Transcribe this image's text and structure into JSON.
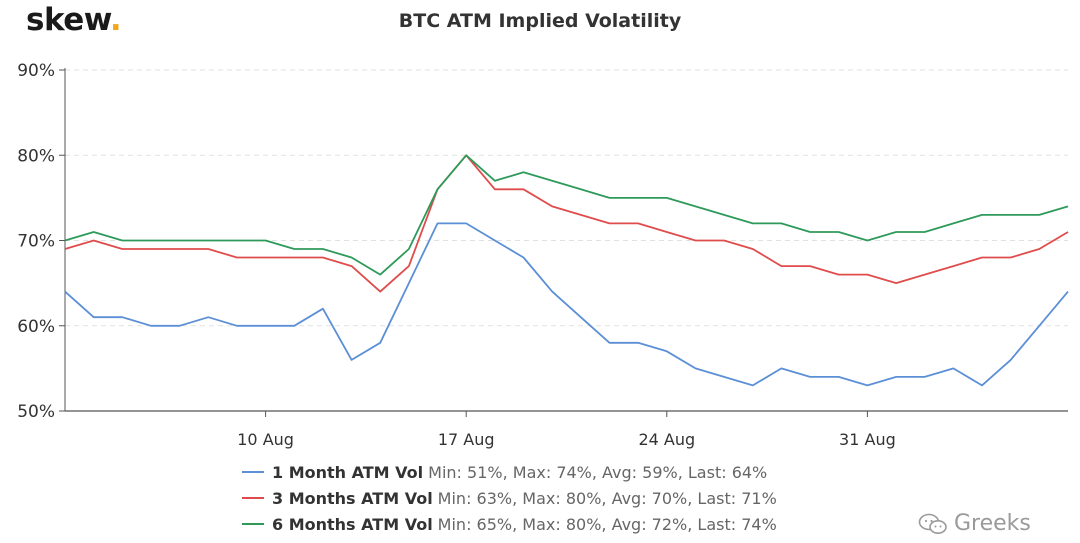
{
  "brand": {
    "name": "skew",
    "dot": "."
  },
  "watermark": {
    "text": "Greeks"
  },
  "chart_data": {
    "type": "line",
    "title": "BTC ATM Implied Volatility",
    "xlabel": "",
    "ylabel": "",
    "ylim": [
      50,
      90
    ],
    "y_ticks": [
      "50%",
      "60%",
      "70%",
      "80%",
      "90%"
    ],
    "y_tick_values": [
      50,
      60,
      70,
      80,
      90
    ],
    "xlim": [
      "2020-08-03",
      "2020-09-07"
    ],
    "x_ticks": [
      "10 Aug",
      "17 Aug",
      "24 Aug",
      "31 Aug"
    ],
    "x_tick_dates": [
      "2020-08-10",
      "2020-08-17",
      "2020-08-24",
      "2020-08-31"
    ],
    "grid": "horizontal dashed",
    "legend_placement": "bottom",
    "series": [
      {
        "name": "1 Month ATM Vol",
        "stats": "Min: 51%, Max: 74%, Avg: 59%, Last: 64%",
        "color": "#5b8fd6",
        "x": [
          "2020-08-03",
          "2020-08-04",
          "2020-08-05",
          "2020-08-06",
          "2020-08-07",
          "2020-08-08",
          "2020-08-09",
          "2020-08-10",
          "2020-08-11",
          "2020-08-12",
          "2020-08-13",
          "2020-08-14",
          "2020-08-15",
          "2020-08-16",
          "2020-08-17",
          "2020-08-18",
          "2020-08-19",
          "2020-08-20",
          "2020-08-21",
          "2020-08-22",
          "2020-08-23",
          "2020-08-24",
          "2020-08-25",
          "2020-08-26",
          "2020-08-27",
          "2020-08-28",
          "2020-08-29",
          "2020-08-30",
          "2020-08-31",
          "2020-09-01",
          "2020-09-02",
          "2020-09-03",
          "2020-09-04",
          "2020-09-05",
          "2020-09-06",
          "2020-09-07"
        ],
        "values": [
          64,
          61,
          61,
          60,
          60,
          61,
          60,
          60,
          60,
          62,
          56,
          58,
          65,
          72,
          72,
          70,
          68,
          64,
          61,
          58,
          58,
          57,
          55,
          54,
          53,
          55,
          54,
          54,
          53,
          54,
          54,
          55,
          53,
          56,
          60,
          64
        ]
      },
      {
        "name": "3 Months ATM Vol",
        "stats": "Min: 63%, Max: 80%, Avg: 70%, Last: 71%",
        "color": "#e04c4c",
        "x": [
          "2020-08-03",
          "2020-08-04",
          "2020-08-05",
          "2020-08-06",
          "2020-08-07",
          "2020-08-08",
          "2020-08-09",
          "2020-08-10",
          "2020-08-11",
          "2020-08-12",
          "2020-08-13",
          "2020-08-14",
          "2020-08-15",
          "2020-08-16",
          "2020-08-17",
          "2020-08-18",
          "2020-08-19",
          "2020-08-20",
          "2020-08-21",
          "2020-08-22",
          "2020-08-23",
          "2020-08-24",
          "2020-08-25",
          "2020-08-26",
          "2020-08-27",
          "2020-08-28",
          "2020-08-29",
          "2020-08-30",
          "2020-08-31",
          "2020-09-01",
          "2020-09-02",
          "2020-09-03",
          "2020-09-04",
          "2020-09-05",
          "2020-09-06",
          "2020-09-07"
        ],
        "values": [
          69,
          70,
          69,
          69,
          69,
          69,
          68,
          68,
          68,
          68,
          67,
          64,
          67,
          76,
          80,
          76,
          76,
          74,
          73,
          72,
          72,
          71,
          70,
          70,
          69,
          67,
          67,
          66,
          66,
          65,
          66,
          67,
          68,
          68,
          69,
          71
        ]
      },
      {
        "name": "6 Months ATM Vol",
        "stats": "Min: 65%, Max: 80%, Avg: 72%, Last: 74%",
        "color": "#2e9a5a",
        "x": [
          "2020-08-03",
          "2020-08-04",
          "2020-08-05",
          "2020-08-06",
          "2020-08-07",
          "2020-08-08",
          "2020-08-09",
          "2020-08-10",
          "2020-08-11",
          "2020-08-12",
          "2020-08-13",
          "2020-08-14",
          "2020-08-15",
          "2020-08-16",
          "2020-08-17",
          "2020-08-18",
          "2020-08-19",
          "2020-08-20",
          "2020-08-21",
          "2020-08-22",
          "2020-08-23",
          "2020-08-24",
          "2020-08-25",
          "2020-08-26",
          "2020-08-27",
          "2020-08-28",
          "2020-08-29",
          "2020-08-30",
          "2020-08-31",
          "2020-09-01",
          "2020-09-02",
          "2020-09-03",
          "2020-09-04",
          "2020-09-05",
          "2020-09-06",
          "2020-09-07"
        ],
        "values": [
          70,
          71,
          70,
          70,
          70,
          70,
          70,
          70,
          69,
          69,
          68,
          66,
          69,
          76,
          80,
          77,
          78,
          77,
          76,
          75,
          75,
          75,
          74,
          73,
          72,
          72,
          71,
          71,
          70,
          71,
          71,
          72,
          73,
          73,
          73,
          74
        ]
      }
    ]
  }
}
